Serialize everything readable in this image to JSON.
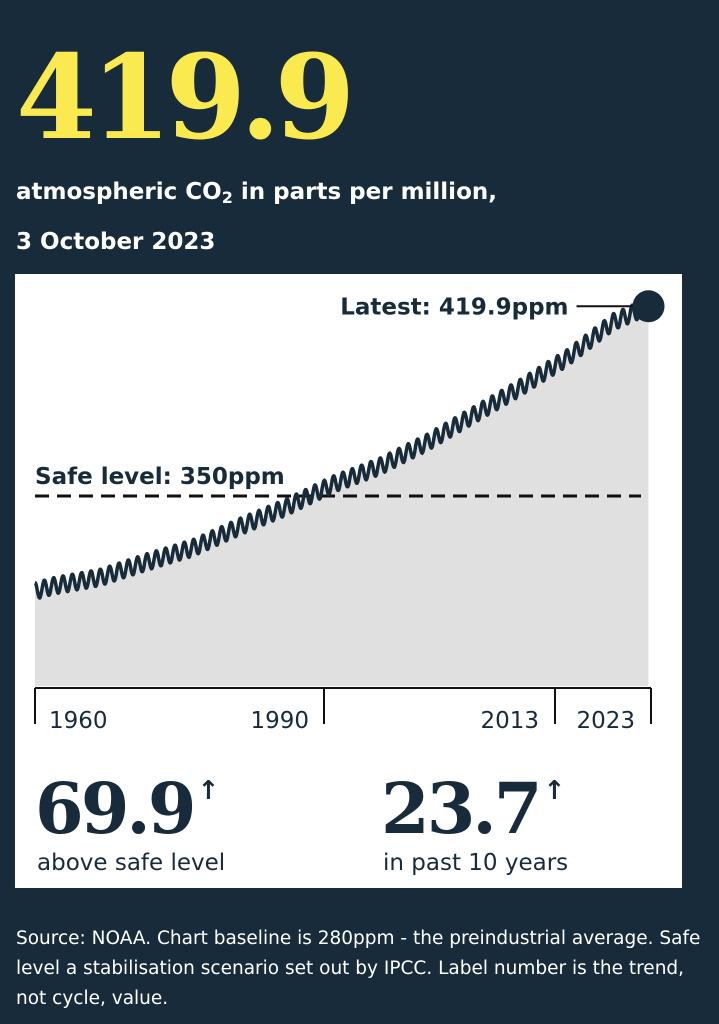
{
  "header": {
    "value": "419.9",
    "subtitle_pre": "atmospheric CO",
    "subtitle_sub": "2",
    "subtitle_post": " in parts per million,",
    "date": "3 October 2023"
  },
  "chart_data": {
    "type": "area",
    "x_unit": "year",
    "y_unit": "ppm",
    "baseline": 280,
    "xlim": [
      1958,
      2023.8
    ],
    "ylim": [
      280,
      420
    ],
    "x_ticks": [
      1960,
      1990,
      2013,
      2023
    ],
    "x_tick_labels": [
      "1960",
      "1990",
      "2013",
      "2023"
    ],
    "safe_level": {
      "value": 350,
      "label": "Safe level: 350ppm"
    },
    "latest": {
      "x": 2023.75,
      "value": 419.9,
      "label": "Latest: 419.9ppm"
    },
    "trend": [
      {
        "x": 1958,
        "y": 315
      },
      {
        "x": 1960,
        "y": 316.9
      },
      {
        "x": 1965,
        "y": 320
      },
      {
        "x": 1970,
        "y": 325.7
      },
      {
        "x": 1975,
        "y": 331
      },
      {
        "x": 1980,
        "y": 338.8
      },
      {
        "x": 1985,
        "y": 346
      },
      {
        "x": 1990,
        "y": 354.4
      },
      {
        "x": 1995,
        "y": 361
      },
      {
        "x": 2000,
        "y": 369.7
      },
      {
        "x": 2005,
        "y": 379.8
      },
      {
        "x": 2010,
        "y": 389.9
      },
      {
        "x": 2013,
        "y": 396.5
      },
      {
        "x": 2015,
        "y": 400.8
      },
      {
        "x": 2020,
        "y": 414.2
      },
      {
        "x": 2023.75,
        "y": 419.9
      }
    ],
    "seasonal_amplitude": 3
  },
  "stats": [
    {
      "value": "69.9",
      "arrow": "↑",
      "caption": "above safe level"
    },
    {
      "value": "23.7",
      "arrow": "↑",
      "caption": "in past 10 years"
    }
  ],
  "footnote": "Source: NOAA. Chart baseline is 280ppm - the preindustrial average. Safe level a stabilisation scenario set out by IPCC. Label number is the trend, not cycle, value.",
  "colors": {
    "background": "#172b3a",
    "headline": "#fbea4f",
    "area_fill": "#e0e0e0",
    "line": "#172b3a"
  }
}
